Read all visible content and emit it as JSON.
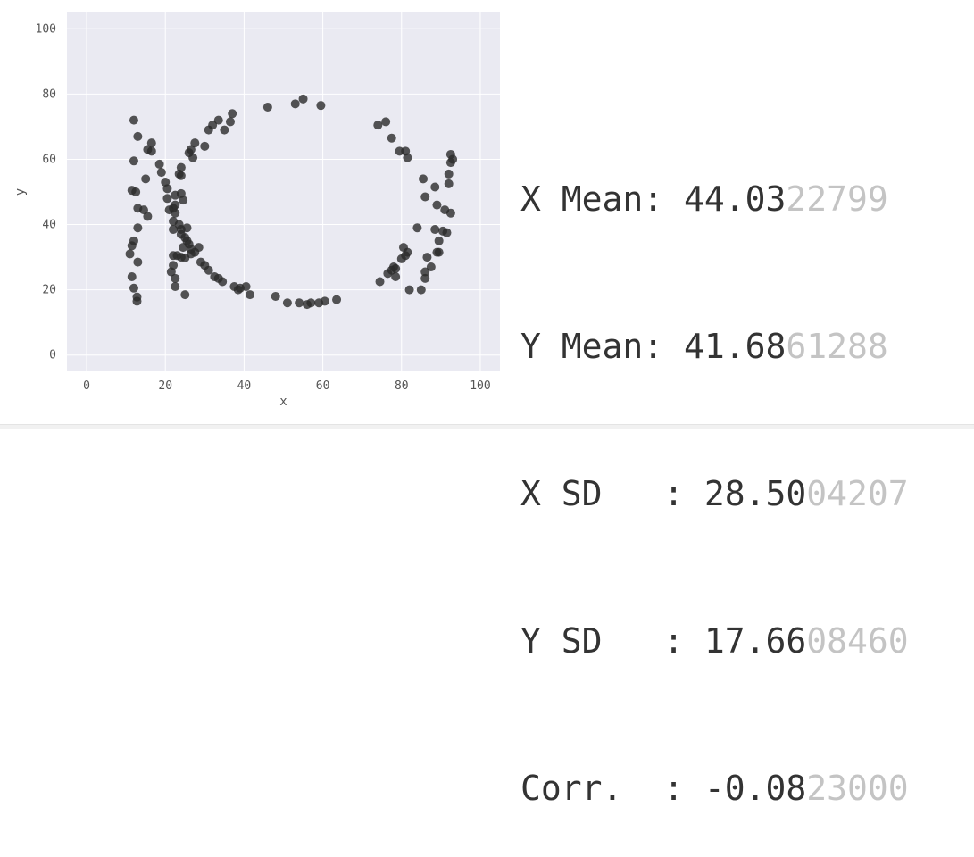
{
  "chart_data": {
    "type": "scatter",
    "title": "",
    "xlabel": "x",
    "ylabel": "y",
    "xlim": [
      -5,
      105
    ],
    "ylim": [
      -5,
      105
    ],
    "xticks": [
      0,
      20,
      40,
      60,
      80,
      100
    ],
    "yticks": [
      0,
      20,
      40,
      60,
      80,
      100
    ],
    "grid": true,
    "point_color": "#2a2a2a",
    "background_color": "#eaeaf2",
    "points": [
      [
        12.0,
        72.0
      ],
      [
        13.0,
        67.0
      ],
      [
        15.5,
        63.0
      ],
      [
        16.5,
        65.0
      ],
      [
        16.5,
        62.5
      ],
      [
        18.5,
        58.5
      ],
      [
        19.0,
        56.0
      ],
      [
        20.0,
        53.0
      ],
      [
        20.5,
        51.0
      ],
      [
        20.5,
        48.0
      ],
      [
        15.0,
        54.0
      ],
      [
        11.5,
        50.5
      ],
      [
        12.5,
        50.0
      ],
      [
        12.0,
        59.5
      ],
      [
        13.0,
        45.0
      ],
      [
        14.5,
        44.5
      ],
      [
        15.5,
        42.5
      ],
      [
        13.0,
        39.0
      ],
      [
        12.0,
        35.0
      ],
      [
        11.5,
        33.5
      ],
      [
        11.0,
        31.0
      ],
      [
        13.0,
        28.5
      ],
      [
        11.5,
        24.0
      ],
      [
        12.0,
        20.5
      ],
      [
        12.8,
        17.8
      ],
      [
        12.8,
        16.5
      ],
      [
        21.0,
        44.5
      ],
      [
        22.0,
        45.0
      ],
      [
        22.5,
        43.5
      ],
      [
        22.5,
        46.0
      ],
      [
        22.5,
        49.0
      ],
      [
        24.0,
        49.5
      ],
      [
        24.5,
        47.5
      ],
      [
        23.5,
        55.5
      ],
      [
        24.0,
        55.0
      ],
      [
        24.0,
        57.5
      ],
      [
        26.0,
        62.0
      ],
      [
        26.5,
        63.0
      ],
      [
        27.5,
        65.0
      ],
      [
        27.0,
        60.5
      ],
      [
        30.0,
        64.0
      ],
      [
        31.0,
        69.0
      ],
      [
        32.0,
        70.5
      ],
      [
        33.5,
        72.0
      ],
      [
        35.0,
        69.0
      ],
      [
        36.5,
        71.5
      ],
      [
        37.0,
        74.0
      ],
      [
        22.0,
        41.0
      ],
      [
        22.0,
        38.5
      ],
      [
        23.5,
        40.0
      ],
      [
        24.0,
        38.5
      ],
      [
        24.0,
        37.0
      ],
      [
        25.0,
        36.0
      ],
      [
        25.5,
        35.0
      ],
      [
        26.0,
        34.0
      ],
      [
        26.5,
        32.5
      ],
      [
        25.5,
        39.0
      ],
      [
        24.5,
        33.0
      ],
      [
        26.5,
        31.0
      ],
      [
        27.5,
        31.5
      ],
      [
        28.5,
        33.0
      ],
      [
        23.0,
        30.5
      ],
      [
        24.0,
        30.0
      ],
      [
        25.0,
        29.8
      ],
      [
        22.0,
        30.5
      ],
      [
        22.0,
        27.5
      ],
      [
        21.5,
        25.5
      ],
      [
        22.5,
        23.5
      ],
      [
        22.5,
        21.0
      ],
      [
        25.0,
        18.5
      ],
      [
        29.0,
        28.5
      ],
      [
        30.0,
        27.5
      ],
      [
        31.0,
        26.0
      ],
      [
        32.5,
        24.0
      ],
      [
        33.5,
        23.5
      ],
      [
        34.5,
        22.5
      ],
      [
        37.5,
        21.0
      ],
      [
        38.5,
        20.0
      ],
      [
        39.0,
        20.5
      ],
      [
        40.5,
        21.0
      ],
      [
        41.5,
        18.5
      ],
      [
        48.0,
        18.0
      ],
      [
        51.0,
        16.0
      ],
      [
        54.0,
        16.0
      ],
      [
        56.0,
        15.5
      ],
      [
        57.0,
        16.0
      ],
      [
        59.0,
        16.0
      ],
      [
        60.5,
        16.5
      ],
      [
        63.5,
        17.0
      ],
      [
        46.0,
        76.0
      ],
      [
        53.0,
        77.0
      ],
      [
        55.0,
        78.5
      ],
      [
        59.5,
        76.5
      ],
      [
        74.0,
        70.5
      ],
      [
        76.0,
        71.5
      ],
      [
        77.5,
        66.5
      ],
      [
        79.5,
        62.5
      ],
      [
        81.0,
        62.5
      ],
      [
        81.5,
        60.5
      ],
      [
        85.5,
        54.0
      ],
      [
        86.0,
        48.5
      ],
      [
        88.5,
        51.5
      ],
      [
        89.0,
        46.0
      ],
      [
        91.0,
        44.5
      ],
      [
        92.5,
        43.5
      ],
      [
        92.0,
        52.5
      ],
      [
        92.0,
        55.5
      ],
      [
        92.5,
        59.0
      ],
      [
        93.0,
        60.0
      ],
      [
        92.5,
        61.5
      ],
      [
        84.0,
        39.0
      ],
      [
        88.5,
        38.5
      ],
      [
        90.5,
        38.0
      ],
      [
        91.5,
        37.5
      ],
      [
        89.5,
        35.0
      ],
      [
        80.5,
        33.0
      ],
      [
        81.0,
        30.5
      ],
      [
        81.5,
        31.5
      ],
      [
        80.0,
        29.5
      ],
      [
        89.0,
        31.5
      ],
      [
        89.5,
        31.5
      ],
      [
        86.5,
        30.0
      ],
      [
        87.5,
        27.0
      ],
      [
        86.0,
        25.5
      ],
      [
        86.0,
        23.5
      ],
      [
        78.0,
        27.0
      ],
      [
        78.5,
        26.5
      ],
      [
        77.5,
        26.0
      ],
      [
        76.5,
        25.0
      ],
      [
        78.5,
        24.0
      ],
      [
        74.5,
        22.5
      ],
      [
        82.0,
        20.0
      ],
      [
        85.0,
        20.0
      ]
    ]
  },
  "stats": [
    {
      "label": "X Mean: ",
      "shown": "44.03",
      "faded": "22799"
    },
    {
      "label": "Y Mean: ",
      "shown": "41.68",
      "faded": "61288"
    },
    {
      "label": "X SD   : ",
      "shown": "28.50",
      "faded": "04207"
    },
    {
      "label": "Y SD   : ",
      "shown": "17.66",
      "faded": "08460"
    },
    {
      "label": "Corr.  : ",
      "shown": "-0.08",
      "faded": "23000"
    }
  ]
}
